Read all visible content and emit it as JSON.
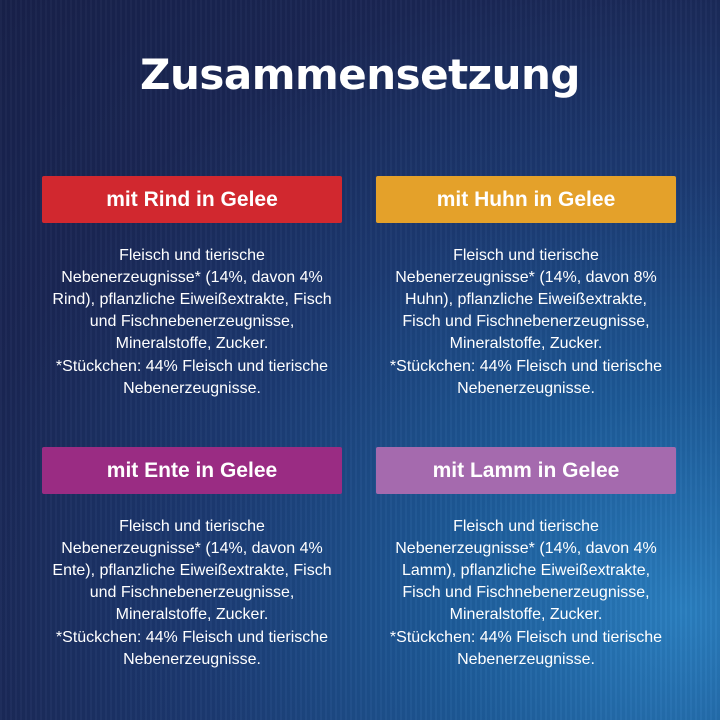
{
  "title": "Zusammensetzung",
  "cards": [
    {
      "label": "mit Rind in Gelee",
      "color": "#d1282f",
      "lines": [
        "Fleisch und tierische",
        "Nebenerzeugnisse* (14%, davon 4%",
        "Rind), pflanzliche Eiweißextrakte, Fisch",
        "und Fischnebenerzeugnisse,",
        "Mineralstoffe, Zucker."
      ],
      "foot": [
        "*Stückchen: 44% Fleisch und tierische",
        "Nebenerzeugnisse."
      ]
    },
    {
      "label": "mit Huhn in Gelee",
      "color": "#e4a12a",
      "lines": [
        "Fleisch und tierische",
        "Nebenerzeugnisse* (14%, davon 8%",
        "Huhn), pflanzliche Eiweißextrakte,",
        "Fisch und Fischnebenerzeugnisse,",
        "Mineralstoffe, Zucker."
      ],
      "foot": [
        "*Stückchen: 44% Fleisch und tierische",
        "Nebenerzeugnisse."
      ]
    },
    {
      "label": "mit Ente in Gelee",
      "color": "#9a2c83",
      "lines": [
        "Fleisch und tierische",
        "Nebenerzeugnisse* (14%, davon 4%",
        "Ente), pflanzliche Eiweißextrakte, Fisch",
        "und Fischnebenerzeugnisse,",
        "Mineralstoffe, Zucker."
      ],
      "foot": [
        "*Stückchen: 44% Fleisch und tierische",
        "Nebenerzeugnisse."
      ]
    },
    {
      "label": "mit Lamm in Gelee",
      "color": "#a56aae",
      "lines": [
        "Fleisch und tierische",
        "Nebenerzeugnisse* (14%, davon 4%",
        "Lamm), pflanzliche Eiweißextrakte,",
        "Fisch und Fischnebenerzeugnisse,",
        "Mineralstoffe, Zucker."
      ],
      "foot": [
        "*Stückchen: 44% Fleisch und tierische",
        "Nebenerzeugnisse."
      ]
    }
  ]
}
